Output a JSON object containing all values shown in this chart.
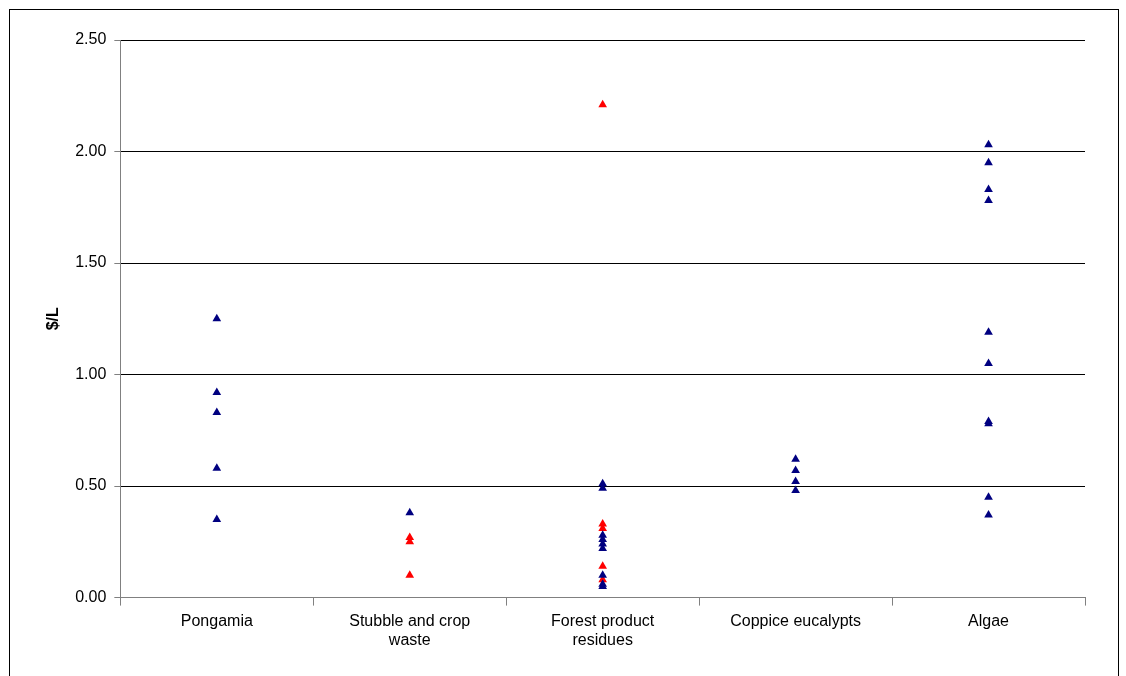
{
  "chart_data": {
    "type": "scatter",
    "ylabel": "$/L",
    "categories": [
      "Pongamia",
      "Stubble and crop waste",
      "Forest product residues",
      "Coppice eucalypts",
      "Algae"
    ],
    "series": [
      {
        "color": "#000080",
        "x": [
          "Pongamia",
          "Pongamia",
          "Pongamia",
          "Pongamia",
          "Pongamia",
          "Stubble and crop waste",
          "Forest product residues",
          "Forest product residues",
          "Forest product residues",
          "Forest product residues",
          "Forest product residues",
          "Forest product residues",
          "Forest product residues",
          "Forest product residues",
          "Forest product residues",
          "Coppice eucalypts",
          "Coppice eucalypts",
          "Coppice eucalypts",
          "Coppice eucalypts",
          "Algae",
          "Algae",
          "Algae",
          "Algae",
          "Algae",
          "Algae",
          "Algae",
          "Algae",
          "Algae",
          "Algae"
        ],
        "values": [
          1.25,
          0.92,
          0.83,
          0.58,
          0.35,
          0.38,
          0.51,
          0.49,
          0.28,
          0.26,
          0.24,
          0.22,
          0.1,
          0.06,
          0.05,
          0.62,
          0.57,
          0.52,
          0.48,
          2.03,
          1.95,
          1.83,
          1.78,
          1.19,
          1.05,
          0.79,
          0.78,
          0.45,
          0.37
        ]
      },
      {
        "color": "#ff0000",
        "x": [
          "Stubble and crop waste",
          "Stubble and crop waste",
          "Stubble and crop waste",
          "Forest product residues",
          "Forest product residues",
          "Forest product residues",
          "Forest product residues",
          "Forest product residues"
        ],
        "values": [
          0.27,
          0.25,
          0.1,
          2.21,
          0.33,
          0.31,
          0.14,
          0.08
        ]
      }
    ],
    "ylim": [
      0,
      2.5
    ],
    "yticks": [
      {
        "value": 0,
        "label": "0.00"
      },
      {
        "value": 0.5,
        "label": "0.50"
      },
      {
        "value": 1,
        "label": "1.00"
      },
      {
        "value": 1.5,
        "label": "1.50"
      },
      {
        "value": 2,
        "label": "2.00"
      },
      {
        "value": 2.5,
        "label": "2.50"
      }
    ],
    "grid": "y",
    "legend": false,
    "marker": "triangle"
  }
}
